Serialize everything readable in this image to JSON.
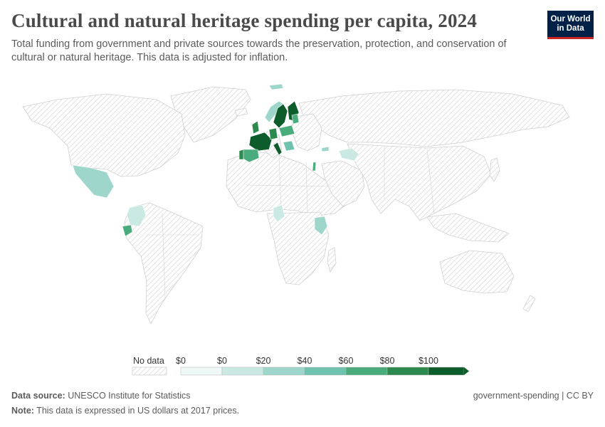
{
  "header": {
    "title": "Cultural and natural heritage spending per capita, 2024",
    "subtitle": "Total funding from government and private sources towards the preservation, protection, and conservation of cultural or natural heritage. This data is adjusted for inflation.",
    "logo_line1": "Our World",
    "logo_line2": "in Data"
  },
  "legend": {
    "no_data_label": "No data",
    "ticks": [
      "$0",
      "$0",
      "$20",
      "$40",
      "$60",
      "$80",
      "$100"
    ],
    "colors": [
      "#eef8f7",
      "#cbe9e3",
      "#9fd6cb",
      "#6fc2ad",
      "#4aac7c",
      "#2d8a4f",
      "#0d5c2c"
    ]
  },
  "footer": {
    "source_label": "Data source:",
    "source_value": "UNESCO Institute for Statistics",
    "note_label": "Note:",
    "note_value": "This data is expressed in US dollars at 2017 prices.",
    "right": "government-spending | CC BY"
  },
  "colors": {
    "nodata_stroke": "#d6d6d6",
    "hatch": "#dcdcdc",
    "border": "#cfcfcf"
  }
}
